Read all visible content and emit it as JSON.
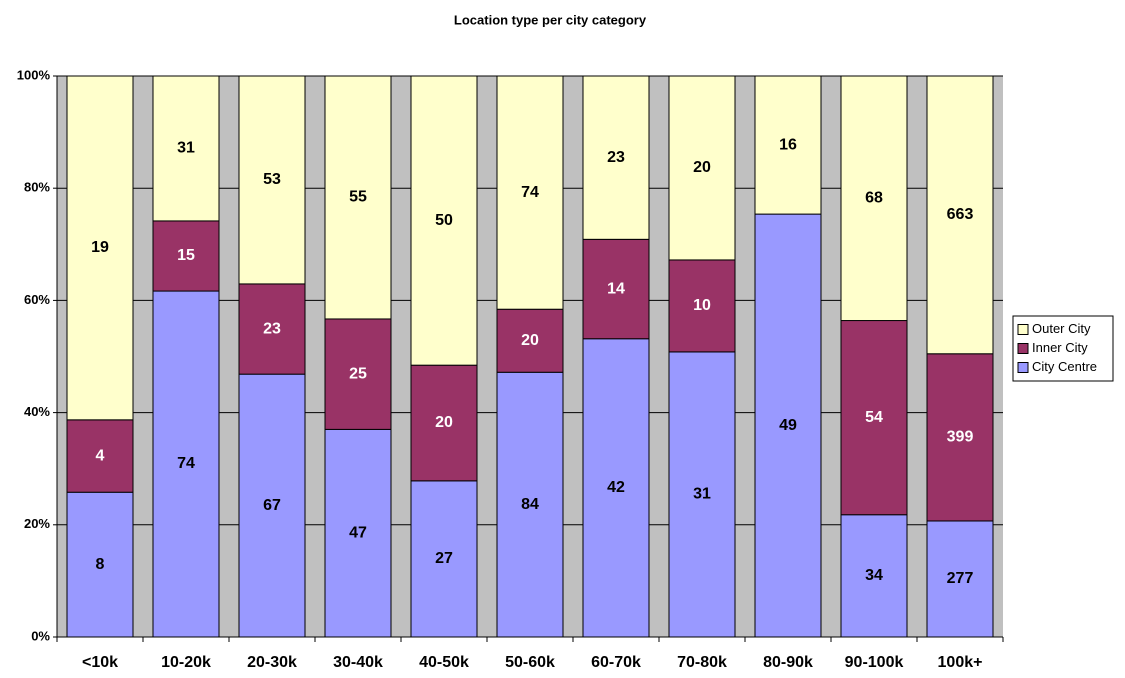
{
  "chart_data": {
    "type": "bar",
    "stacking": "percent",
    "title": "Location type per city category",
    "categories": [
      "<10k",
      "10-20k",
      "20-30k",
      "30-40k",
      "40-50k",
      "50-60k",
      "60-70k",
      "70-80k",
      "80-90k",
      "90-100k",
      "100k+"
    ],
    "series": [
      {
        "name": "City Centre",
        "color": "#9999ff",
        "label_color": "#000000",
        "values": [
          8,
          74,
          67,
          47,
          27,
          84,
          42,
          31,
          49,
          34,
          277
        ]
      },
      {
        "name": "Inner City",
        "color": "#993366",
        "label_color": "#ffffff",
        "values": [
          4,
          15,
          23,
          25,
          20,
          20,
          14,
          10,
          null,
          54,
          399
        ]
      },
      {
        "name": "Outer City",
        "color": "#ffffcc",
        "label_color": "#000000",
        "values": [
          19,
          31,
          53,
          55,
          50,
          74,
          23,
          20,
          16,
          68,
          663
        ]
      }
    ],
    "ylim": [
      0,
      100
    ],
    "yticks": [
      {
        "value": 0,
        "label": "0%"
      },
      {
        "value": 20,
        "label": "20%"
      },
      {
        "value": 40,
        "label": "40%"
      },
      {
        "value": 60,
        "label": "60%"
      },
      {
        "value": 80,
        "label": "80%"
      },
      {
        "value": 100,
        "label": "100%"
      }
    ],
    "grid": true,
    "legend": "right",
    "plot_background": "#c0c0c0"
  }
}
